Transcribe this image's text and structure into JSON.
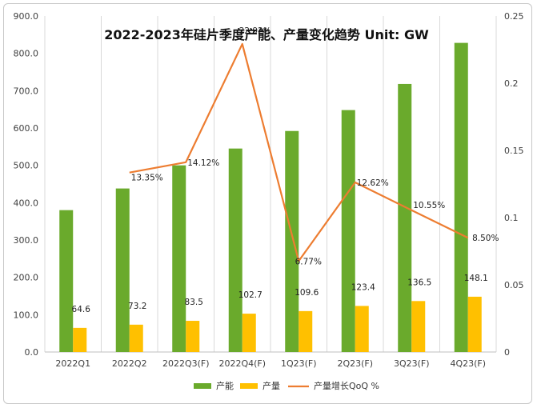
{
  "chart_data": {
    "type": "bar",
    "title": "2022-2023年硅片季度产能、产量变化趋势 Unit: GW",
    "categories": [
      "2022Q1",
      "2022Q2",
      "2022Q3(F)",
      "2022Q4(F)",
      "1Q23(F)",
      "2Q23(F)",
      "3Q23(F)",
      "4Q23(F)"
    ],
    "series": [
      {
        "name": "产能",
        "axis": "left",
        "values": [
          380,
          438,
          500,
          545,
          592,
          648,
          718,
          828
        ],
        "color": "#6aaa2c"
      },
      {
        "name": "产量",
        "axis": "left",
        "values": [
          64.6,
          73.2,
          83.5,
          102.7,
          109.6,
          123.4,
          136.5,
          148.1
        ],
        "labels": [
          "64.6",
          "73.2",
          "83.5",
          "102.7",
          "109.6",
          "123.4",
          "136.5",
          "148.1"
        ],
        "color": "#ffc000"
      },
      {
        "name": "产量增长QoQ %",
        "type": "line",
        "axis": "right",
        "values": [
          null,
          0.1335,
          0.1412,
          0.2292,
          0.0677,
          0.1262,
          0.1055,
          0.085
        ],
        "labels": [
          "",
          "13.35%",
          "14.12%",
          "22.92%",
          "6.77%",
          "12.62%",
          "10.55%",
          "8.50%"
        ],
        "color": "#ed7d31"
      }
    ],
    "y_left": {
      "range": [
        0,
        900
      ],
      "ticks": [
        "0.0",
        "100.0",
        "200.0",
        "300.0",
        "400.0",
        "500.0",
        "600.0",
        "700.0",
        "800.0",
        "900.0"
      ]
    },
    "y_right": {
      "range": [
        0,
        0.25
      ],
      "ticks": [
        "0",
        "0.05",
        "0.1",
        "0.15",
        "0.2",
        "0.25"
      ]
    },
    "grid": "vertical-category",
    "legend": "bottom-center"
  }
}
